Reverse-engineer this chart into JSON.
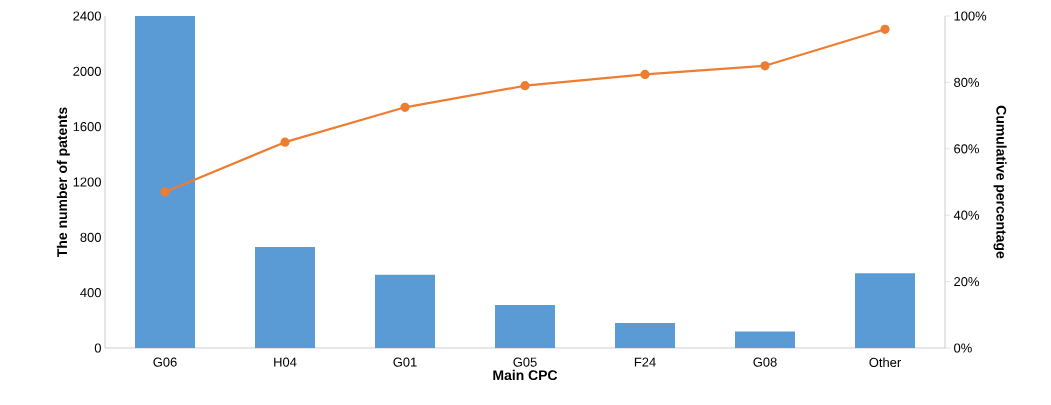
{
  "chart_data": {
    "type": "bar",
    "xlabel": "Main CPC",
    "ylabel": "The number of patents",
    "y2label": "Cumulative percentage",
    "marker": "circle",
    "categories": [
      "G06",
      "H04",
      "G01",
      "G05",
      "F24",
      "G08",
      "Other"
    ],
    "series": [
      {
        "color": "#5b9bd5",
        "values": [
          2400,
          730,
          530,
          310,
          180,
          120,
          540
        ]
      },
      {
        "type": "line",
        "axis": "y2",
        "color": "#ed7d31",
        "values": [
          47,
          62,
          72.5,
          79,
          82.4,
          85,
          96
        ]
      }
    ],
    "ylim": [
      0,
      2400
    ],
    "yticks": [
      0,
      400,
      800,
      1200,
      1600,
      2000,
      2400
    ],
    "y2lim": [
      0,
      100
    ],
    "y2ticks": [
      {
        "value": 0,
        "label": "0%"
      },
      {
        "value": 20,
        "label": "20%"
      },
      {
        "value": 40,
        "label": "40%"
      },
      {
        "value": 60,
        "label": "60%"
      },
      {
        "value": 80,
        "label": "80%"
      },
      {
        "value": 100,
        "label": "100%"
      }
    ]
  }
}
